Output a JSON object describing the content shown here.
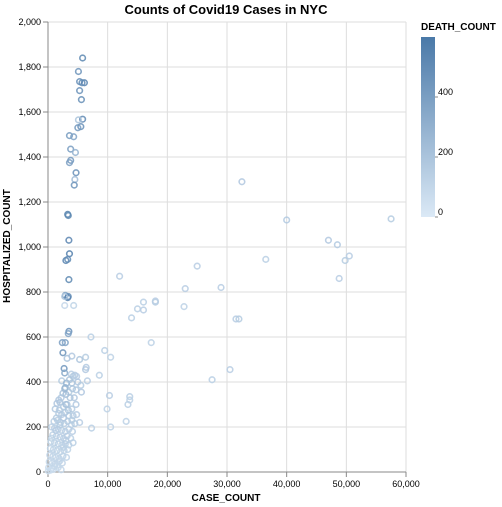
{
  "chart_data": {
    "type": "scatter",
    "title": "Counts of Covid19 Cases in NYC",
    "xlabel": "CASE_COUNT",
    "ylabel": "HOSPITALIZED_COUNT",
    "xlim": [
      0,
      60000
    ],
    "ylim": [
      0,
      2000
    ],
    "x_ticks": [
      {
        "value": 0,
        "label": "0"
      },
      {
        "value": 10000,
        "label": "10,000"
      },
      {
        "value": 20000,
        "label": "20,000"
      },
      {
        "value": 30000,
        "label": "30,000"
      },
      {
        "value": 40000,
        "label": "40,000"
      },
      {
        "value": 50000,
        "label": "50,000"
      },
      {
        "value": 60000,
        "label": "60,000"
      }
    ],
    "y_ticks": [
      {
        "value": 0,
        "label": "0"
      },
      {
        "value": 200,
        "label": "200"
      },
      {
        "value": 400,
        "label": "400"
      },
      {
        "value": 600,
        "label": "600"
      },
      {
        "value": 800,
        "label": "800"
      },
      {
        "value": 1000,
        "label": "1,000"
      },
      {
        "value": 1200,
        "label": "1,200"
      },
      {
        "value": 1400,
        "label": "1,400"
      },
      {
        "value": 1600,
        "label": "1,600"
      },
      {
        "value": 1800,
        "label": "1,800"
      },
      {
        "value": 2000,
        "label": "2,000"
      }
    ],
    "grid": true,
    "legend": {
      "title": "DEATH_COUNT",
      "placement": "top-right",
      "domain": [
        0,
        600
      ],
      "ticks": [
        {
          "value": 0,
          "label": "0"
        },
        {
          "value": 200,
          "label": "200"
        },
        {
          "value": 400,
          "label": "400"
        }
      ],
      "color_low": "#dbe9f6",
      "color_high": "#4a79a8"
    },
    "marker": "open-circle",
    "points": [
      [
        5800,
        1840,
        520
      ],
      [
        5100,
        1780,
        460
      ],
      [
        5300,
        1735,
        480
      ],
      [
        6100,
        1730,
        540
      ],
      [
        5700,
        1730,
        500
      ],
      [
        5300,
        1695,
        470
      ],
      [
        5600,
        1655,
        490
      ],
      [
        5800,
        1568,
        510
      ],
      [
        5100,
        1565,
        200
      ],
      [
        5500,
        1535,
        480
      ],
      [
        5000,
        1530,
        430
      ],
      [
        3600,
        1495,
        420
      ],
      [
        4300,
        1490,
        380
      ],
      [
        3800,
        1435,
        410
      ],
      [
        4600,
        1420,
        300
      ],
      [
        3800,
        1385,
        440
      ],
      [
        3600,
        1375,
        400
      ],
      [
        4700,
        1330,
        480
      ],
      [
        4500,
        1300,
        250
      ],
      [
        4400,
        1275,
        460
      ],
      [
        32500,
        1290,
        180
      ],
      [
        3300,
        1145,
        560
      ],
      [
        3400,
        1140,
        520
      ],
      [
        40000,
        1120,
        170
      ],
      [
        57500,
        1125,
        160
      ],
      [
        47000,
        1030,
        180
      ],
      [
        48500,
        1010,
        170
      ],
      [
        3500,
        1030,
        540
      ],
      [
        50500,
        960,
        150
      ],
      [
        49800,
        940,
        160
      ],
      [
        3600,
        970,
        560
      ],
      [
        3000,
        940,
        540
      ],
      [
        3300,
        945,
        500
      ],
      [
        25000,
        915,
        150
      ],
      [
        36500,
        945,
        140
      ],
      [
        3500,
        855,
        520
      ],
      [
        12000,
        870,
        150
      ],
      [
        48800,
        860,
        150
      ],
      [
        23000,
        815,
        150
      ],
      [
        29000,
        820,
        150
      ],
      [
        2900,
        785,
        380
      ],
      [
        3400,
        780,
        480
      ],
      [
        3300,
        775,
        540
      ],
      [
        2800,
        780,
        200
      ],
      [
        16000,
        755,
        140
      ],
      [
        18000,
        755,
        160
      ],
      [
        18000,
        760,
        150
      ],
      [
        15000,
        725,
        140
      ],
      [
        16000,
        720,
        150
      ],
      [
        22800,
        735,
        130
      ],
      [
        31500,
        680,
        150
      ],
      [
        32000,
        680,
        160
      ],
      [
        2800,
        740,
        100
      ],
      [
        4300,
        740,
        120
      ],
      [
        14000,
        685,
        140
      ],
      [
        3500,
        625,
        480
      ],
      [
        3400,
        615,
        380
      ],
      [
        7200,
        600,
        140
      ],
      [
        17300,
        575,
        130
      ],
      [
        2400,
        575,
        400
      ],
      [
        2900,
        575,
        380
      ],
      [
        9500,
        540,
        140
      ],
      [
        10500,
        510,
        130
      ],
      [
        6300,
        510,
        160
      ],
      [
        2500,
        530,
        460
      ],
      [
        3200,
        505,
        200
      ],
      [
        4000,
        515,
        180
      ],
      [
        5300,
        500,
        200
      ],
      [
        2700,
        460,
        440
      ],
      [
        6400,
        465,
        170
      ],
      [
        6300,
        455,
        180
      ],
      [
        2800,
        440,
        350
      ],
      [
        3900,
        435,
        150
      ],
      [
        4200,
        425,
        160
      ],
      [
        4500,
        430,
        170
      ],
      [
        4800,
        425,
        150
      ],
      [
        8600,
        430,
        140
      ],
      [
        27500,
        410,
        140
      ],
      [
        30500,
        455,
        150
      ],
      [
        6600,
        405,
        150
      ],
      [
        5000,
        400,
        180
      ],
      [
        2300,
        405,
        160
      ],
      [
        4000,
        395,
        200
      ],
      [
        5500,
        385,
        160
      ],
      [
        2900,
        375,
        300
      ],
      [
        4700,
        365,
        170
      ],
      [
        3500,
        355,
        160
      ],
      [
        3000,
        345,
        250
      ],
      [
        5600,
        355,
        180
      ],
      [
        10300,
        340,
        150
      ],
      [
        9900,
        280,
        130
      ],
      [
        13400,
        300,
        140
      ],
      [
        13700,
        335,
        140
      ],
      [
        13700,
        320,
        130
      ],
      [
        13100,
        225,
        130
      ],
      [
        10500,
        200,
        130
      ],
      [
        7300,
        195,
        140
      ],
      [
        2000,
        310,
        200
      ],
      [
        1500,
        305,
        180
      ],
      [
        1800,
        320,
        180
      ],
      [
        2200,
        330,
        170
      ],
      [
        2600,
        290,
        160
      ],
      [
        3200,
        300,
        170
      ],
      [
        4000,
        280,
        160
      ],
      [
        1200,
        280,
        170
      ],
      [
        1800,
        260,
        160
      ],
      [
        2300,
        255,
        150
      ],
      [
        2900,
        265,
        160
      ],
      [
        3500,
        250,
        170
      ],
      [
        4200,
        250,
        160
      ],
      [
        4800,
        255,
        150
      ],
      [
        1000,
        225,
        140
      ],
      [
        1600,
        230,
        150
      ],
      [
        2100,
        220,
        160
      ],
      [
        2700,
        215,
        150
      ],
      [
        3300,
        225,
        160
      ],
      [
        3900,
        210,
        150
      ],
      [
        4500,
        215,
        160
      ],
      [
        5300,
        220,
        150
      ],
      [
        600,
        200,
        130
      ],
      [
        1100,
        195,
        140
      ],
      [
        1700,
        190,
        150
      ],
      [
        2300,
        185,
        140
      ],
      [
        2900,
        180,
        150
      ],
      [
        3500,
        190,
        140
      ],
      [
        4100,
        180,
        150
      ],
      [
        800,
        165,
        130
      ],
      [
        1400,
        160,
        140
      ],
      [
        2000,
        155,
        150
      ],
      [
        2600,
        150,
        140
      ],
      [
        3200,
        160,
        150
      ],
      [
        3800,
        150,
        140
      ],
      [
        500,
        135,
        120
      ],
      [
        1100,
        130,
        130
      ],
      [
        1700,
        125,
        140
      ],
      [
        2300,
        120,
        130
      ],
      [
        2900,
        125,
        140
      ],
      [
        3500,
        120,
        130
      ],
      [
        4200,
        130,
        140
      ],
      [
        400,
        105,
        110
      ],
      [
        900,
        100,
        120
      ],
      [
        1500,
        95,
        130
      ],
      [
        2100,
        90,
        120
      ],
      [
        2700,
        95,
        130
      ],
      [
        3300,
        100,
        120
      ],
      [
        300,
        75,
        100
      ],
      [
        800,
        70,
        110
      ],
      [
        1300,
        65,
        120
      ],
      [
        1900,
        60,
        110
      ],
      [
        2500,
        70,
        120
      ],
      [
        3100,
        65,
        110
      ],
      [
        200,
        45,
        90
      ],
      [
        700,
        40,
        100
      ],
      [
        1200,
        35,
        110
      ],
      [
        1800,
        45,
        100
      ],
      [
        2400,
        40,
        110
      ],
      [
        100,
        20,
        80
      ],
      [
        600,
        15,
        90
      ],
      [
        1100,
        25,
        100
      ],
      [
        1700,
        20,
        90
      ],
      [
        2200,
        10,
        100
      ],
      [
        50,
        5,
        60
      ],
      [
        400,
        8,
        70
      ],
      [
        900,
        12,
        80
      ],
      [
        1500,
        30,
        90
      ],
      [
        2000,
        50,
        100
      ],
      [
        2600,
        110,
        130
      ],
      [
        3000,
        140,
        150
      ],
      [
        1900,
        275,
        170
      ],
      [
        2500,
        350,
        200
      ],
      [
        2800,
        370,
        260
      ],
      [
        3100,
        395,
        280
      ],
      [
        3600,
        410,
        200
      ],
      [
        4100,
        370,
        190
      ],
      [
        4400,
        330,
        180
      ],
      [
        3700,
        330,
        200
      ],
      [
        3000,
        300,
        220
      ],
      [
        2600,
        240,
        180
      ],
      [
        2000,
        210,
        160
      ],
      [
        1300,
        185,
        150
      ],
      [
        3400,
        275,
        190
      ],
      [
        4700,
        300,
        170
      ],
      [
        1400,
        240,
        160
      ],
      [
        600,
        150,
        120
      ],
      [
        4000,
        230,
        160
      ]
    ]
  }
}
